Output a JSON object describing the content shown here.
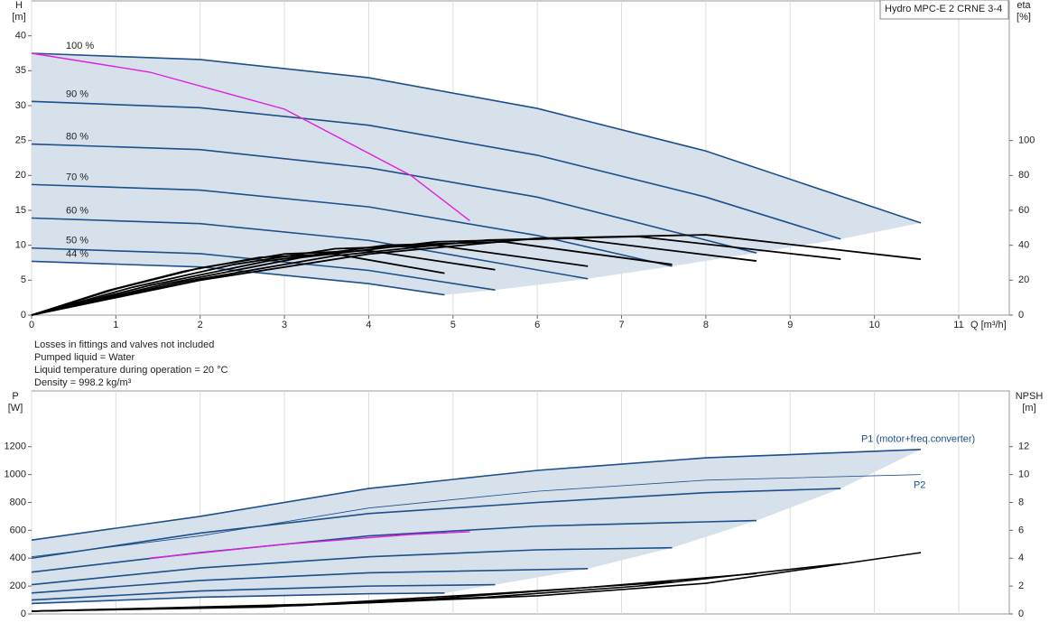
{
  "chart_data": [
    {
      "type": "line",
      "title": "Hydro MPC-E 2 CRNE 3-4",
      "x_label": "Q [m³/h]",
      "y_label": [
        "H",
        "[m]"
      ],
      "y2_label": [
        "eta",
        "[%]"
      ],
      "xlim": [
        0,
        11.6
      ],
      "xticks": [
        0,
        1,
        2,
        3,
        4,
        5,
        6,
        7,
        8,
        9,
        10,
        11
      ],
      "ylim": [
        0,
        45
      ],
      "yticks": [
        0,
        5,
        10,
        15,
        20,
        25,
        30,
        35,
        40
      ],
      "y2lim": [
        0,
        180
      ],
      "y2ticks": [
        0,
        20,
        40,
        60,
        80,
        100
      ],
      "grid": "x",
      "series": [
        {
          "name": "100 %",
          "color": "#1d4f8a",
          "width": 1.6,
          "x": [
            0,
            2,
            4,
            6,
            8,
            10.55
          ],
          "values": [
            37.5,
            36.6,
            34.0,
            29.6,
            23.5,
            13.2
          ]
        },
        {
          "name": "90 %",
          "color": "#1d4f8a",
          "width": 1.6,
          "x": [
            0,
            2,
            4,
            6,
            8,
            9.6
          ],
          "values": [
            30.6,
            29.7,
            27.2,
            22.9,
            16.9,
            10.9
          ]
        },
        {
          "name": "80 %",
          "color": "#1d4f8a",
          "width": 1.6,
          "x": [
            0,
            2,
            4,
            6,
            8.6
          ],
          "values": [
            24.5,
            23.7,
            21.1,
            16.9,
            8.9
          ]
        },
        {
          "name": "70 %",
          "color": "#1d4f8a",
          "width": 1.6,
          "x": [
            0,
            2,
            4,
            6,
            7.6
          ],
          "values": [
            18.7,
            17.9,
            15.5,
            11.4,
            7.0
          ]
        },
        {
          "name": "60 %",
          "color": "#1d4f8a",
          "width": 1.6,
          "x": [
            0,
            2,
            4,
            6.6
          ],
          "values": [
            13.9,
            13.1,
            10.7,
            5.2
          ]
        },
        {
          "name": "50 %",
          "color": "#1d4f8a",
          "width": 1.6,
          "x": [
            0,
            2,
            4,
            5.5
          ],
          "values": [
            9.6,
            8.8,
            6.4,
            3.6
          ]
        },
        {
          "name": "44 %",
          "color": "#1d4f8a",
          "width": 1.6,
          "x": [
            0,
            2,
            4,
            4.9
          ],
          "values": [
            7.7,
            6.9,
            4.5,
            2.9
          ]
        },
        {
          "color": "#e020e0",
          "width": 1.4,
          "x": [
            0,
            1.4,
            3,
            4.5,
            5.2
          ],
          "values": [
            37.5,
            34.8,
            29.5,
            20,
            13.5
          ]
        },
        {
          "color": "#000000",
          "width": 1.8,
          "axis": "y2",
          "x": [
            0,
            2,
            4,
            6,
            8,
            10.55
          ],
          "values": [
            0,
            20,
            35,
            44,
            46,
            32
          ]
        },
        {
          "color": "#000000",
          "width": 1.8,
          "axis": "y2",
          "x": [
            0,
            1.8,
            3.6,
            5.4,
            7.2,
            9.6
          ],
          "values": [
            0,
            19,
            34,
            43,
            45,
            32
          ]
        },
        {
          "color": "#000000",
          "width": 1.8,
          "axis": "y2",
          "x": [
            0,
            1.6,
            3.2,
            4.8,
            6.4,
            8.6
          ],
          "values": [
            0,
            18,
            33,
            42,
            44,
            31
          ]
        },
        {
          "color": "#000000",
          "width": 1.8,
          "axis": "y2",
          "x": [
            0,
            1.4,
            2.8,
            4.2,
            5.6,
            7.6
          ],
          "values": [
            0,
            17,
            31,
            40,
            42,
            29
          ]
        },
        {
          "color": "#000000",
          "width": 1.8,
          "axis": "y2",
          "x": [
            0,
            1.2,
            2.4,
            3.6,
            4.8,
            6.6
          ],
          "values": [
            0,
            16,
            29,
            38,
            40,
            28
          ]
        },
        {
          "color": "#000000",
          "width": 1.8,
          "axis": "y2",
          "x": [
            0,
            1,
            2,
            3,
            4,
            5.5
          ],
          "values": [
            0,
            15,
            27,
            35,
            37,
            26
          ]
        },
        {
          "color": "#000000",
          "width": 1.8,
          "axis": "y2",
          "x": [
            0,
            0.9,
            1.8,
            2.7,
            3.6,
            4.9
          ],
          "values": [
            0,
            14,
            25,
            33,
            35,
            24
          ]
        }
      ]
    },
    {
      "type": "line",
      "y_label": [
        "P",
        "[W]"
      ],
      "y2_label": [
        "NPSH",
        "[m]"
      ],
      "xlim": [
        0,
        11.6
      ],
      "ylim": [
        0,
        1600
      ],
      "yticks": [
        0,
        200,
        400,
        600,
        800,
        1000,
        1200
      ],
      "y2lim": [
        0,
        16
      ],
      "y2ticks": [
        0,
        2,
        4,
        6,
        8,
        10,
        12
      ],
      "grid": "x",
      "series": [
        {
          "name": "P1 (motor+freq.converter)",
          "color": "#1d4f8a",
          "width": 1.6,
          "x": [
            0,
            2,
            4,
            6,
            8,
            10.55
          ],
          "values": [
            530,
            700,
            900,
            1030,
            1120,
            1180
          ]
        },
        {
          "name": "P2",
          "color": "#1d4f8a",
          "width": 0.8,
          "x": [
            0,
            2,
            4,
            6,
            8,
            10.55
          ],
          "values": [
            410,
            560,
            760,
            880,
            960,
            1000
          ]
        },
        {
          "color": "#1d4f8a",
          "width": 1.6,
          "x": [
            0,
            2,
            4,
            6,
            8,
            9.6
          ],
          "values": [
            400,
            580,
            720,
            800,
            870,
            900
          ]
        },
        {
          "color": "#1d4f8a",
          "width": 1.6,
          "x": [
            0,
            2,
            4,
            6,
            8.6
          ],
          "values": [
            300,
            440,
            560,
            630,
            670
          ]
        },
        {
          "color": "#1d4f8a",
          "width": 1.6,
          "x": [
            0,
            2,
            4,
            6,
            7.6
          ],
          "values": [
            210,
            330,
            410,
            460,
            475
          ]
        },
        {
          "color": "#1d4f8a",
          "width": 1.6,
          "x": [
            0,
            2,
            4,
            6.6
          ],
          "values": [
            150,
            240,
            295,
            325
          ]
        },
        {
          "color": "#1d4f8a",
          "width": 1.6,
          "x": [
            0,
            2,
            4,
            5.5
          ],
          "values": [
            100,
            165,
            200,
            210
          ]
        },
        {
          "color": "#1d4f8a",
          "width": 1.6,
          "x": [
            0,
            2,
            4,
            4.9
          ],
          "values": [
            75,
            120,
            145,
            150
          ]
        },
        {
          "color": "#e020e0",
          "width": 1.4,
          "x": [
            1.4,
            3,
            4.5,
            5.2
          ],
          "values": [
            400,
            500,
            570,
            590
          ]
        },
        {
          "color": "#000000",
          "width": 1.6,
          "axis": "y2",
          "x": [
            0,
            4,
            6,
            8,
            10.55
          ],
          "values": [
            0.2,
            0.8,
            1.3,
            2.2,
            4.4
          ]
        },
        {
          "color": "#000000",
          "width": 1.6,
          "axis": "y2",
          "x": [
            0,
            3.6,
            5.4,
            7.2,
            9.6
          ],
          "values": [
            0.2,
            0.7,
            1.2,
            2.0,
            3.6
          ]
        },
        {
          "color": "#000000",
          "width": 1.6,
          "axis": "y2",
          "x": [
            0,
            3.2,
            4.8,
            6.4,
            8.6
          ],
          "values": [
            0.2,
            0.6,
            1.1,
            1.8,
            2.9
          ]
        },
        {
          "color": "#000000",
          "width": 1.6,
          "axis": "y2",
          "x": [
            0,
            2.8,
            4.2,
            5.6,
            7.6
          ],
          "values": [
            0.2,
            0.5,
            1.0,
            1.5,
            2.3
          ]
        }
      ]
    }
  ],
  "notes": [
    "Losses in fittings and valves not included",
    "Pumped liquid = Water",
    "Liquid temperature during operation = 20 °C",
    "Density = 998.2 kg/m³"
  ]
}
